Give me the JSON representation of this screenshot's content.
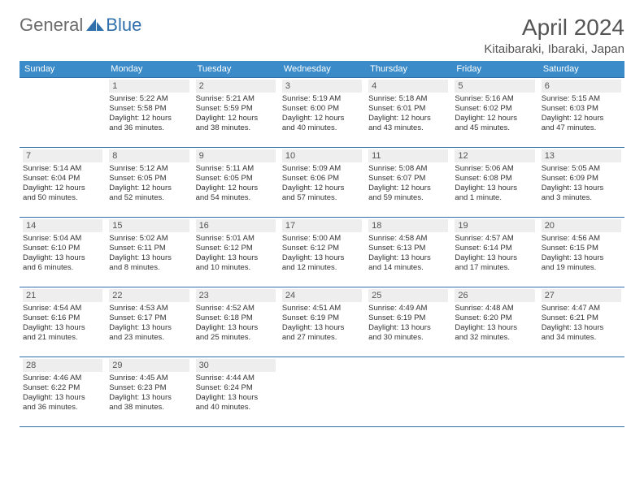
{
  "brand": {
    "part1": "General",
    "part2": "Blue"
  },
  "title": "April 2024",
  "location": "Kitaibaraki, Ibaraki, Japan",
  "colors": {
    "header_bg": "#3b8bc8",
    "border": "#2f6fab",
    "daynum_bg": "#eeeeee",
    "brand_gray": "#6b6b6b",
    "brand_blue": "#2f6fab"
  },
  "weekdays": [
    "Sunday",
    "Monday",
    "Tuesday",
    "Wednesday",
    "Thursday",
    "Friday",
    "Saturday"
  ],
  "weeks": [
    [
      {
        "day": "",
        "sunrise": "",
        "sunset": "",
        "daylight1": "",
        "daylight2": ""
      },
      {
        "day": "1",
        "sunrise": "Sunrise: 5:22 AM",
        "sunset": "Sunset: 5:58 PM",
        "daylight1": "Daylight: 12 hours",
        "daylight2": "and 36 minutes."
      },
      {
        "day": "2",
        "sunrise": "Sunrise: 5:21 AM",
        "sunset": "Sunset: 5:59 PM",
        "daylight1": "Daylight: 12 hours",
        "daylight2": "and 38 minutes."
      },
      {
        "day": "3",
        "sunrise": "Sunrise: 5:19 AM",
        "sunset": "Sunset: 6:00 PM",
        "daylight1": "Daylight: 12 hours",
        "daylight2": "and 40 minutes."
      },
      {
        "day": "4",
        "sunrise": "Sunrise: 5:18 AM",
        "sunset": "Sunset: 6:01 PM",
        "daylight1": "Daylight: 12 hours",
        "daylight2": "and 43 minutes."
      },
      {
        "day": "5",
        "sunrise": "Sunrise: 5:16 AM",
        "sunset": "Sunset: 6:02 PM",
        "daylight1": "Daylight: 12 hours",
        "daylight2": "and 45 minutes."
      },
      {
        "day": "6",
        "sunrise": "Sunrise: 5:15 AM",
        "sunset": "Sunset: 6:03 PM",
        "daylight1": "Daylight: 12 hours",
        "daylight2": "and 47 minutes."
      }
    ],
    [
      {
        "day": "7",
        "sunrise": "Sunrise: 5:14 AM",
        "sunset": "Sunset: 6:04 PM",
        "daylight1": "Daylight: 12 hours",
        "daylight2": "and 50 minutes."
      },
      {
        "day": "8",
        "sunrise": "Sunrise: 5:12 AM",
        "sunset": "Sunset: 6:05 PM",
        "daylight1": "Daylight: 12 hours",
        "daylight2": "and 52 minutes."
      },
      {
        "day": "9",
        "sunrise": "Sunrise: 5:11 AM",
        "sunset": "Sunset: 6:05 PM",
        "daylight1": "Daylight: 12 hours",
        "daylight2": "and 54 minutes."
      },
      {
        "day": "10",
        "sunrise": "Sunrise: 5:09 AM",
        "sunset": "Sunset: 6:06 PM",
        "daylight1": "Daylight: 12 hours",
        "daylight2": "and 57 minutes."
      },
      {
        "day": "11",
        "sunrise": "Sunrise: 5:08 AM",
        "sunset": "Sunset: 6:07 PM",
        "daylight1": "Daylight: 12 hours",
        "daylight2": "and 59 minutes."
      },
      {
        "day": "12",
        "sunrise": "Sunrise: 5:06 AM",
        "sunset": "Sunset: 6:08 PM",
        "daylight1": "Daylight: 13 hours",
        "daylight2": "and 1 minute."
      },
      {
        "day": "13",
        "sunrise": "Sunrise: 5:05 AM",
        "sunset": "Sunset: 6:09 PM",
        "daylight1": "Daylight: 13 hours",
        "daylight2": "and 3 minutes."
      }
    ],
    [
      {
        "day": "14",
        "sunrise": "Sunrise: 5:04 AM",
        "sunset": "Sunset: 6:10 PM",
        "daylight1": "Daylight: 13 hours",
        "daylight2": "and 6 minutes."
      },
      {
        "day": "15",
        "sunrise": "Sunrise: 5:02 AM",
        "sunset": "Sunset: 6:11 PM",
        "daylight1": "Daylight: 13 hours",
        "daylight2": "and 8 minutes."
      },
      {
        "day": "16",
        "sunrise": "Sunrise: 5:01 AM",
        "sunset": "Sunset: 6:12 PM",
        "daylight1": "Daylight: 13 hours",
        "daylight2": "and 10 minutes."
      },
      {
        "day": "17",
        "sunrise": "Sunrise: 5:00 AM",
        "sunset": "Sunset: 6:12 PM",
        "daylight1": "Daylight: 13 hours",
        "daylight2": "and 12 minutes."
      },
      {
        "day": "18",
        "sunrise": "Sunrise: 4:58 AM",
        "sunset": "Sunset: 6:13 PM",
        "daylight1": "Daylight: 13 hours",
        "daylight2": "and 14 minutes."
      },
      {
        "day": "19",
        "sunrise": "Sunrise: 4:57 AM",
        "sunset": "Sunset: 6:14 PM",
        "daylight1": "Daylight: 13 hours",
        "daylight2": "and 17 minutes."
      },
      {
        "day": "20",
        "sunrise": "Sunrise: 4:56 AM",
        "sunset": "Sunset: 6:15 PM",
        "daylight1": "Daylight: 13 hours",
        "daylight2": "and 19 minutes."
      }
    ],
    [
      {
        "day": "21",
        "sunrise": "Sunrise: 4:54 AM",
        "sunset": "Sunset: 6:16 PM",
        "daylight1": "Daylight: 13 hours",
        "daylight2": "and 21 minutes."
      },
      {
        "day": "22",
        "sunrise": "Sunrise: 4:53 AM",
        "sunset": "Sunset: 6:17 PM",
        "daylight1": "Daylight: 13 hours",
        "daylight2": "and 23 minutes."
      },
      {
        "day": "23",
        "sunrise": "Sunrise: 4:52 AM",
        "sunset": "Sunset: 6:18 PM",
        "daylight1": "Daylight: 13 hours",
        "daylight2": "and 25 minutes."
      },
      {
        "day": "24",
        "sunrise": "Sunrise: 4:51 AM",
        "sunset": "Sunset: 6:19 PM",
        "daylight1": "Daylight: 13 hours",
        "daylight2": "and 27 minutes."
      },
      {
        "day": "25",
        "sunrise": "Sunrise: 4:49 AM",
        "sunset": "Sunset: 6:19 PM",
        "daylight1": "Daylight: 13 hours",
        "daylight2": "and 30 minutes."
      },
      {
        "day": "26",
        "sunrise": "Sunrise: 4:48 AM",
        "sunset": "Sunset: 6:20 PM",
        "daylight1": "Daylight: 13 hours",
        "daylight2": "and 32 minutes."
      },
      {
        "day": "27",
        "sunrise": "Sunrise: 4:47 AM",
        "sunset": "Sunset: 6:21 PM",
        "daylight1": "Daylight: 13 hours",
        "daylight2": "and 34 minutes."
      }
    ],
    [
      {
        "day": "28",
        "sunrise": "Sunrise: 4:46 AM",
        "sunset": "Sunset: 6:22 PM",
        "daylight1": "Daylight: 13 hours",
        "daylight2": "and 36 minutes."
      },
      {
        "day": "29",
        "sunrise": "Sunrise: 4:45 AM",
        "sunset": "Sunset: 6:23 PM",
        "daylight1": "Daylight: 13 hours",
        "daylight2": "and 38 minutes."
      },
      {
        "day": "30",
        "sunrise": "Sunrise: 4:44 AM",
        "sunset": "Sunset: 6:24 PM",
        "daylight1": "Daylight: 13 hours",
        "daylight2": "and 40 minutes."
      },
      {
        "day": "",
        "sunrise": "",
        "sunset": "",
        "daylight1": "",
        "daylight2": ""
      },
      {
        "day": "",
        "sunrise": "",
        "sunset": "",
        "daylight1": "",
        "daylight2": ""
      },
      {
        "day": "",
        "sunrise": "",
        "sunset": "",
        "daylight1": "",
        "daylight2": ""
      },
      {
        "day": "",
        "sunrise": "",
        "sunset": "",
        "daylight1": "",
        "daylight2": ""
      }
    ]
  ]
}
